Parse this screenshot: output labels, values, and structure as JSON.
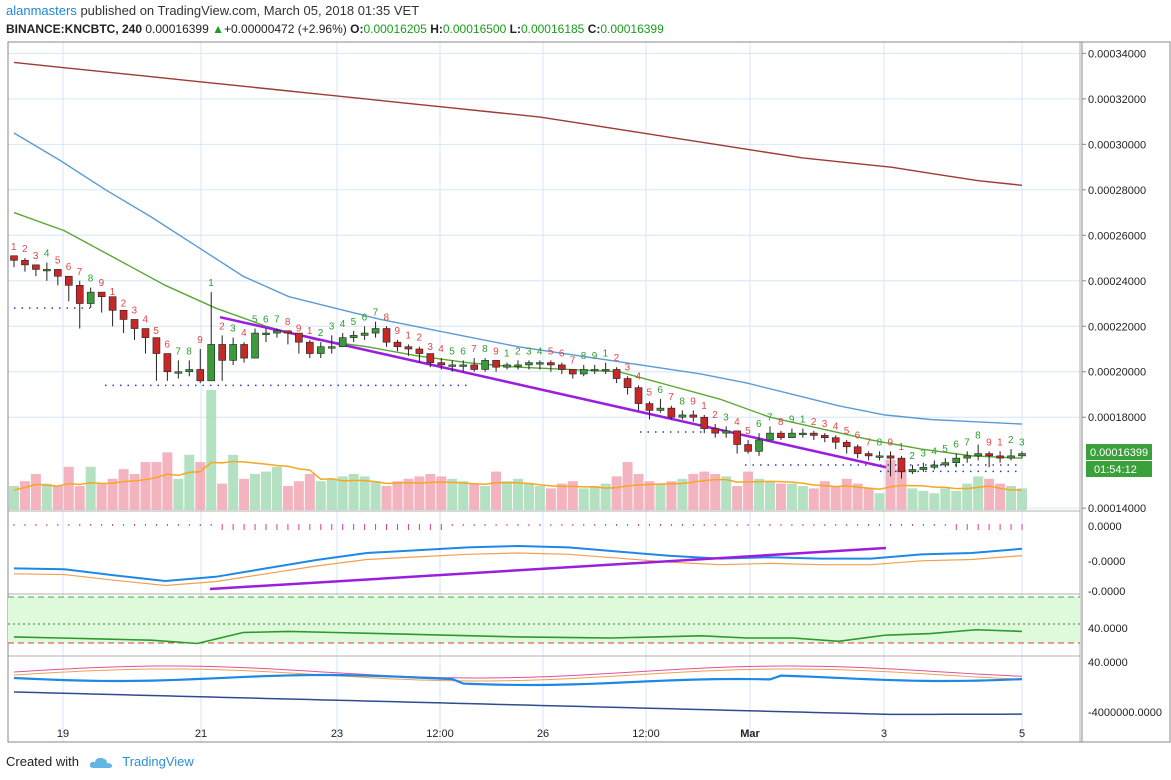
{
  "header": {
    "user": "alanmasters",
    "published_text": "published on TradingView.com, March 05, 2018 01:35 VET",
    "symbol": "BINANCE:KNCBTC, 240",
    "last": "0.00016399",
    "change_arrow": "▲",
    "change": "+0.00000472 (+2.96%)",
    "o_label": "O:",
    "o_value": "0.00016205",
    "h_label": "H:",
    "h_value": "0.00016500",
    "l_label": "L:",
    "l_value": "0.00016185",
    "c_label": "C:",
    "c_value": "0.00016399"
  },
  "price_tag": {
    "value": "0.00016399",
    "countdown": "01:54:12"
  },
  "footer": {
    "created_with": "Created with",
    "brand": "TradingView",
    "logo_icon": "tradingview-cloud-icon"
  },
  "colors": {
    "up": "#3b9a3b",
    "down": "#c62828",
    "sma_long": "#9c3b32",
    "sma_mid": "#5b9bd5",
    "sma_short": "#5aa832",
    "trendline": "#9b1ee0",
    "vol_ma": "#f5a623",
    "grid": "#d6e6f7",
    "macd": "#1e88e5",
    "signal": "#f0a050",
    "rsi": "#2b9a2b"
  },
  "chart_data": {
    "type": "candlestick",
    "title": "",
    "price_axis_ticks": [
      "0.00034000",
      "0.00032000",
      "0.00030000",
      "0.00028000",
      "0.00026000",
      "0.00024000",
      "0.00022000",
      "0.00020000",
      "0.00018000",
      "0.00014000"
    ],
    "ylim": [
      0.0001392,
      0.000345
    ],
    "x_tick_labels": [
      "19",
      "21",
      "23",
      "12:00",
      "26",
      "12:00",
      "Mar",
      "3",
      "5"
    ],
    "candles_close": [
      0.000249,
      0.000247,
      0.000245,
      0.000245,
      0.000242,
      0.000238,
      0.00023,
      0.000235,
      0.000233,
      0.000227,
      0.000223,
      0.000219,
      0.000215,
      0.000208,
      0.0002,
      0.0002,
      0.000201,
      0.000196,
      0.000212,
      0.000205,
      0.000212,
      0.000206,
      0.000217,
      0.000217,
      0.000218,
      0.000217,
      0.000213,
      0.000208,
      0.000211,
      0.000211,
      0.000215,
      0.000216,
      0.000217,
      0.000219,
      0.000213,
      0.000211,
      0.00021,
      0.000208,
      0.000204,
      0.000203,
      0.000203,
      0.000203,
      0.000201,
      0.000205,
      0.000202,
      0.000203,
      0.000203,
      0.000204,
      0.000204,
      0.000203,
      0.000201,
      0.000199,
      0.000201,
      0.000201,
      0.000201,
      0.000197,
      0.000193,
      0.000186,
      0.000183,
      0.000184,
      0.00018,
      0.000181,
      0.00018,
      0.000175,
      0.000173,
      0.000174,
      0.000168,
      0.000165,
      0.00017,
      0.000173,
      0.000171,
      0.000173,
      0.000173,
      0.000172,
      0.000171,
      0.000169,
      0.000167,
      0.000164,
      0.000163,
      0.000163,
      0.000162,
      0.000156,
      0.000157,
      0.000158,
      0.000159,
      0.00016,
      0.000162,
      0.000163,
      0.000164,
      0.000163,
      0.000162,
      0.000163,
      0.000164
    ],
    "candles_high": [
      0.000251,
      0.00025,
      0.000247,
      0.000248,
      0.000245,
      0.000242,
      0.00024,
      0.000237,
      0.000235,
      0.000231,
      0.000226,
      0.000223,
      0.000219,
      0.000214,
      0.000208,
      0.000205,
      0.000205,
      0.00021,
      0.000235,
      0.000216,
      0.000215,
      0.000213,
      0.000219,
      0.000219,
      0.000219,
      0.000218,
      0.000215,
      0.000214,
      0.000213,
      0.000216,
      0.000217,
      0.000218,
      0.00022,
      0.000222,
      0.00022,
      0.000214,
      0.000212,
      0.000211,
      0.000207,
      0.000206,
      0.000205,
      0.000205,
      0.000206,
      0.000206,
      0.000205,
      0.000204,
      0.000205,
      0.000205,
      0.000205,
      0.000205,
      0.000204,
      0.000201,
      0.000203,
      0.000203,
      0.000204,
      0.000202,
      0.000198,
      0.000194,
      0.000187,
      0.000188,
      0.000185,
      0.000183,
      0.000183,
      0.000181,
      0.000177,
      0.000176,
      0.000174,
      0.00017,
      0.000173,
      0.000176,
      0.000174,
      0.000175,
      0.000175,
      0.000174,
      0.000173,
      0.000172,
      0.00017,
      0.000168,
      0.000165,
      0.000165,
      0.000165,
      0.000163,
      0.000159,
      0.00016,
      0.000161,
      0.000162,
      0.000164,
      0.000165,
      0.000168,
      0.000165,
      0.000165,
      0.000166,
      0.000165
    ],
    "candles_low": [
      0.000246,
      0.000244,
      0.000242,
      0.00024,
      0.000238,
      0.000231,
      0.000219,
      0.000228,
      0.000226,
      0.00022,
      0.000217,
      0.000214,
      0.000208,
      0.000196,
      0.000196,
      0.000197,
      0.000198,
      0.000195,
      0.000196,
      0.000196,
      0.000203,
      0.000204,
      0.000211,
      0.000213,
      0.000215,
      0.000212,
      0.000208,
      0.000206,
      0.000206,
      0.000208,
      0.000212,
      0.000213,
      0.000214,
      0.000215,
      0.000211,
      0.000209,
      0.000207,
      0.000204,
      0.000202,
      0.000201,
      0.0002,
      0.0002,
      0.0002,
      0.0002,
      0.0002,
      0.000201,
      0.000201,
      0.000201,
      0.000201,
      0.0002,
      0.000199,
      0.000197,
      0.000198,
      0.000199,
      0.000199,
      0.000195,
      0.00019,
      0.000183,
      0.000179,
      0.000182,
      0.000179,
      0.000179,
      0.000178,
      0.000173,
      0.000171,
      0.000171,
      0.000164,
      0.000164,
      0.000163,
      0.00017,
      0.00017,
      0.000171,
      0.000171,
      0.00017,
      0.000169,
      0.000166,
      0.000164,
      0.000162,
      0.000161,
      0.000161,
      0.000154,
      0.000153,
      0.000155,
      0.000156,
      0.000157,
      0.000158,
      0.000158,
      0.00016,
      0.000161,
      0.000158,
      0.00016,
      0.000161,
      0.000162
    ],
    "volume_rel": [
      0.2,
      0.24,
      0.3,
      0.22,
      0.2,
      0.36,
      0.2,
      0.36,
      0.22,
      0.26,
      0.34,
      0.3,
      0.4,
      0.4,
      0.48,
      0.26,
      0.46,
      0.4,
      1.0,
      0.22,
      0.46,
      0.26,
      0.3,
      0.32,
      0.36,
      0.2,
      0.24,
      0.3,
      0.24,
      0.26,
      0.28,
      0.3,
      0.28,
      0.24,
      0.2,
      0.24,
      0.26,
      0.28,
      0.3,
      0.28,
      0.26,
      0.24,
      0.22,
      0.2,
      0.32,
      0.24,
      0.26,
      0.22,
      0.2,
      0.18,
      0.22,
      0.24,
      0.18,
      0.2,
      0.22,
      0.28,
      0.4,
      0.3,
      0.24,
      0.22,
      0.24,
      0.26,
      0.3,
      0.32,
      0.3,
      0.28,
      0.2,
      0.32,
      0.26,
      0.24,
      0.22,
      0.22,
      0.2,
      0.18,
      0.24,
      0.2,
      0.26,
      0.22,
      0.18,
      0.14,
      0.42,
      0.34,
      0.18,
      0.16,
      0.14,
      0.18,
      0.16,
      0.22,
      0.28,
      0.26,
      0.22,
      0.2,
      0.18
    ],
    "sma_long": [
      0.000336,
      0.000334,
      0.000332,
      0.00033,
      0.000328,
      0.000326,
      0.000324,
      0.000322,
      0.00032,
      0.000318,
      0.000316,
      0.000314,
      0.000312,
      0.000309,
      0.000306,
      0.000303,
      0.0003,
      0.000297,
      0.000294,
      0.000292,
      0.00029,
      0.000287,
      0.000284,
      0.000282
    ],
    "sma_mid": [
      0.000305,
      0.000293,
      0.00028,
      0.000268,
      0.000255,
      0.000242,
      0.000233,
      0.000228,
      0.000223,
      0.000219,
      0.000215,
      0.000211,
      0.000208,
      0.000205,
      0.000202,
      0.000199,
      0.000195,
      0.00019,
      0.000185,
      0.000181,
      0.000179,
      0.000178,
      0.000177
    ],
    "sma_short": [
      0.00027,
      0.000262,
      0.00025,
      0.000238,
      0.000228,
      0.00022,
      0.000214,
      0.000211,
      0.000207,
      0.000204,
      0.000202,
      0.000201,
      0.0002,
      0.000194,
      0.000188,
      0.00018,
      0.000175,
      0.00017,
      0.000166,
      0.000163,
      0.000162
    ],
    "trendline_price": [
      [
        0.000224,
        0.000158
      ]
    ],
    "macd_axis_ticks": [
      "0.0000",
      "-0.0000",
      "-0.0000"
    ],
    "macd_line": [
      -0.3,
      -0.33,
      -0.55,
      -0.75,
      -0.6,
      -0.3,
      0.0,
      0.25,
      0.35,
      0.45,
      0.5,
      0.45,
      0.3,
      0.15,
      0.05,
      0.1,
      0.05,
      0.05,
      0.2,
      0.25,
      0.4
    ],
    "rsi_axis_tick": "40.0000",
    "rsi": [
      42,
      40,
      38,
      36,
      30,
      50,
      52,
      50,
      48,
      46,
      44,
      42,
      41,
      40,
      42,
      44,
      40,
      40,
      34,
      45,
      48,
      55,
      52
    ],
    "bottom_axis_ticks": [
      "40.0000",
      "-4000000.0000"
    ]
  }
}
